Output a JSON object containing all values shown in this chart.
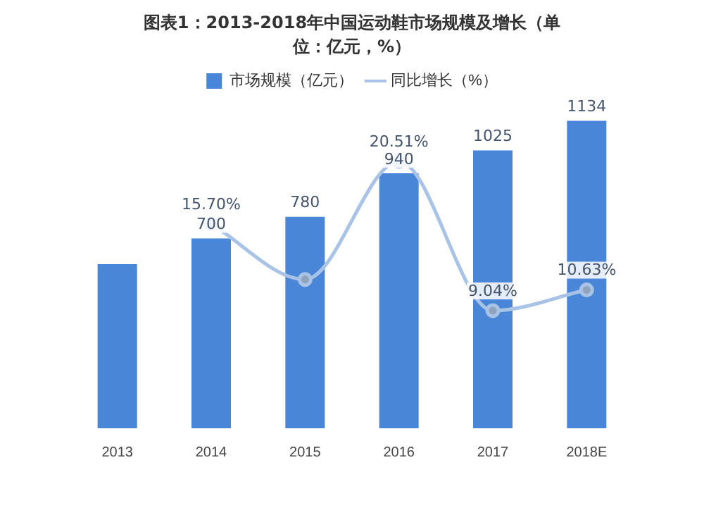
{
  "chart_data": {
    "type": "bar",
    "title": "图表1：2013-2018年中国运动鞋市场规模及增长（单位：亿元，%）",
    "categories": [
      "2013",
      "2014",
      "2015",
      "2016",
      "2017",
      "2018E"
    ],
    "series": [
      {
        "name": "市场规模（亿元）",
        "color": "#4a86d8",
        "values": [
          605,
          700,
          780,
          940,
          1025,
          1134
        ],
        "value_labels": [
          null,
          "700",
          "780",
          "940",
          "1025",
          "1134"
        ]
      },
      {
        "name": "同比增长（%）",
        "type": "line",
        "axis": "y2",
        "color": "#a9c3e6",
        "values": [
          null,
          15.7,
          11.43,
          20.51,
          9.04,
          10.63
        ],
        "value_labels": [
          null,
          "15.70%",
          null,
          "20.51%",
          "9.04%",
          "10.63%"
        ]
      }
    ],
    "tick_labels": "x",
    "grid": false,
    "legend": "top",
    "marker": "circle"
  }
}
